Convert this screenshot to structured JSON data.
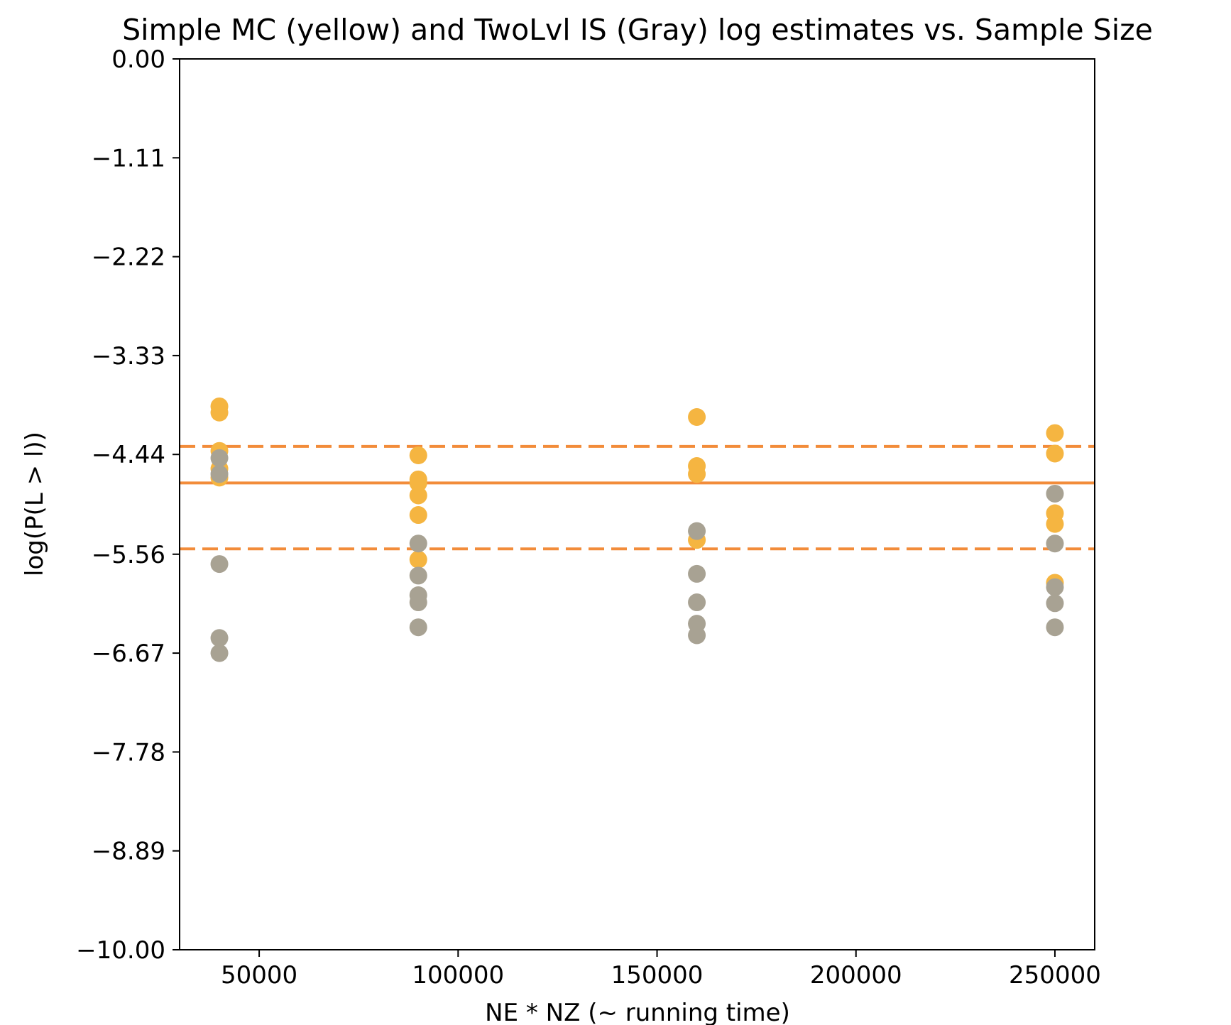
{
  "chart_data": {
    "type": "scatter",
    "title": "Simple MC (yellow) and TwoLvl IS (Gray) log estimates vs. Sample Size",
    "xlabel": "NE * NZ (~ running time)",
    "ylabel": "log(P(L > l))",
    "xlim": [
      30000,
      260000
    ],
    "ylim": [
      -10.0,
      0.0
    ],
    "x_ticks": [
      50000,
      100000,
      150000,
      200000,
      250000
    ],
    "x_tick_labels": [
      "50000",
      "100000",
      "150000",
      "200000",
      "250000"
    ],
    "y_ticks": [
      0.0,
      -1.11,
      -2.22,
      -3.33,
      -4.44,
      -5.56,
      -6.67,
      -7.78,
      -8.89,
      -10.0
    ],
    "y_tick_labels": [
      "0.00",
      "−1.11",
      "−2.22",
      "−3.33",
      "−4.44",
      "−5.56",
      "−6.67",
      "−7.78",
      "−8.89",
      "−10.00"
    ],
    "grid": false,
    "series": [
      {
        "color": "#f5b541",
        "points": [
          [
            40000,
            -3.9
          ],
          [
            40000,
            -3.97
          ],
          [
            40000,
            -4.4
          ],
          [
            40000,
            -4.6
          ],
          [
            40000,
            -4.7
          ],
          [
            90000,
            -4.45
          ],
          [
            90000,
            -4.72
          ],
          [
            90000,
            -4.76
          ],
          [
            90000,
            -4.9
          ],
          [
            90000,
            -5.12
          ],
          [
            90000,
            -5.62
          ],
          [
            160000,
            -4.02
          ],
          [
            160000,
            -4.57
          ],
          [
            160000,
            -4.66
          ],
          [
            160000,
            -5.4
          ],
          [
            250000,
            -4.2
          ],
          [
            250000,
            -4.43
          ],
          [
            250000,
            -5.1
          ],
          [
            250000,
            -5.22
          ],
          [
            250000,
            -5.88
          ]
        ]
      },
      {
        "color": "#a8a293",
        "points": [
          [
            40000,
            -4.48
          ],
          [
            40000,
            -4.66
          ],
          [
            40000,
            -5.67
          ],
          [
            40000,
            -6.5
          ],
          [
            40000,
            -6.67
          ],
          [
            90000,
            -5.44
          ],
          [
            90000,
            -5.8
          ],
          [
            90000,
            -6.02
          ],
          [
            90000,
            -6.1
          ],
          [
            90000,
            -6.38
          ],
          [
            160000,
            -5.3
          ],
          [
            160000,
            -5.78
          ],
          [
            160000,
            -6.1
          ],
          [
            160000,
            -6.34
          ],
          [
            160000,
            -6.47
          ],
          [
            250000,
            -4.88
          ],
          [
            250000,
            -5.44
          ],
          [
            250000,
            -5.93
          ],
          [
            250000,
            -6.11
          ],
          [
            250000,
            -6.38
          ]
        ]
      }
    ],
    "reference_lines": [
      {
        "y": -4.35,
        "style": "dashed",
        "color": "#f28c3a"
      },
      {
        "y": -4.76,
        "style": "solid",
        "color": "#f28c3a"
      },
      {
        "y": -5.5,
        "style": "dashed",
        "color": "#f28c3a"
      }
    ]
  }
}
